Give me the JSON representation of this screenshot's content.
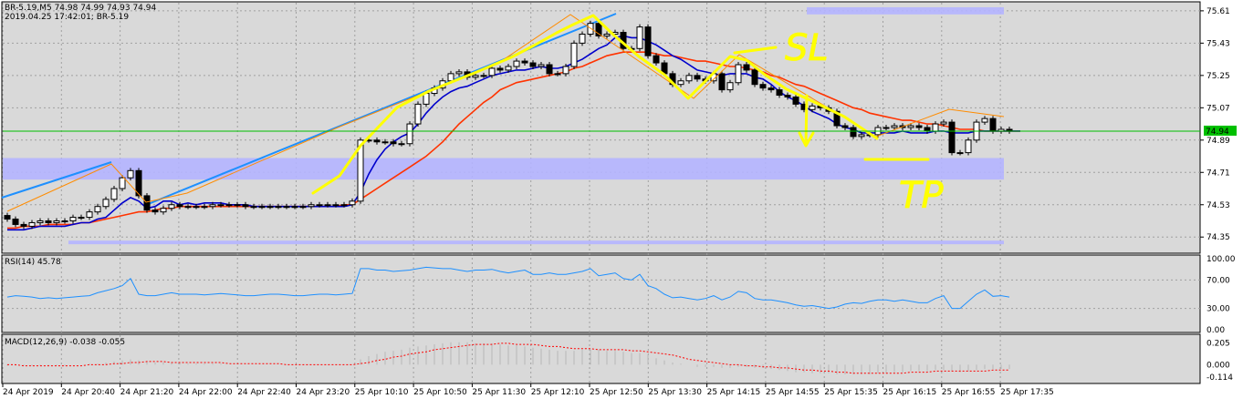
{
  "header": {
    "symbol_line": "BR-5.19,M5  74.98 74.99 74.93 74.94",
    "info_line": "2019.04.25 17:42:01; BR-5.19"
  },
  "price_panel": {
    "current_price": "74.94",
    "annotations": {
      "sl": "SL",
      "tp": "TP"
    },
    "y_ticks": [
      "75.61",
      "75.43",
      "75.25",
      "75.07",
      "74.89",
      "74.71",
      "74.53",
      "74.35"
    ]
  },
  "rsi_panel": {
    "label": "RSI(14) 45.78",
    "y_ticks": [
      "100.00",
      "70.00",
      "30.00",
      "0.00"
    ]
  },
  "macd_panel": {
    "label": "MACD(12,26,9) -0.038 -0.055",
    "y_ticks": [
      "0.205",
      "0.000",
      "-0.114"
    ]
  },
  "x_axis": {
    "ticks": [
      "24 Apr 2019",
      "24 Apr 20:40",
      "24 Apr 21:20",
      "24 Apr 22:00",
      "24 Apr 22:40",
      "24 Apr 23:20",
      "25 Apr 10:10",
      "25 Apr 10:50",
      "25 Apr 11:30",
      "25 Apr 12:10",
      "25 Apr 12:50",
      "25 Apr 13:30",
      "25 Apr 14:15",
      "25 Apr 14:55",
      "25 Apr 15:35",
      "25 Apr 16:15",
      "25 Apr 16:55",
      "25 Apr 17:35"
    ]
  },
  "colors": {
    "background": "#d9d9d9",
    "grid": "#a0a0a0",
    "ma_fast": "#0000cc",
    "ma_slow": "#ff3300",
    "trendline": "#1e90ff",
    "marker": "#ffff00",
    "zone": "#b4b4ff",
    "current_price_line": "#00c000",
    "rsi_line": "#1e90ff",
    "macd_signal": "#ff0000"
  },
  "chart_data": [
    {
      "type": "candlestick",
      "price_range": [
        74.27,
        75.65
      ],
      "close": [
        74.45,
        74.42,
        74.41,
        74.43,
        74.44,
        74.43,
        74.44,
        74.44,
        74.46,
        74.46,
        74.49,
        74.52,
        74.56,
        74.62,
        74.68,
        74.72,
        74.58,
        74.5,
        74.49,
        74.51,
        74.53,
        74.52,
        74.52,
        74.52,
        74.52,
        74.53,
        74.53,
        74.53,
        74.53,
        74.52,
        74.52,
        74.52,
        74.52,
        74.52,
        74.52,
        74.52,
        74.52,
        74.53,
        74.53,
        74.53,
        74.53,
        74.53,
        74.55,
        74.89,
        74.89,
        74.88,
        74.88,
        74.87,
        74.87,
        74.98,
        75.09,
        75.15,
        75.18,
        75.22,
        75.26,
        75.27,
        75.24,
        75.25,
        75.25,
        75.29,
        75.28,
        75.3,
        75.33,
        75.32,
        75.3,
        75.31,
        75.26,
        75.26,
        75.3,
        75.43,
        75.48,
        75.54,
        75.47,
        75.48,
        75.49,
        75.4,
        75.4,
        75.52,
        75.36,
        75.32,
        75.26,
        75.2,
        75.22,
        75.25,
        75.23,
        75.22,
        75.26,
        75.17,
        75.21,
        75.31,
        75.28,
        75.2,
        75.18,
        75.17,
        75.14,
        75.13,
        75.09,
        75.06,
        75.08,
        75.07,
        75.05,
        74.97,
        74.96,
        74.91,
        74.92,
        74.92,
        74.96,
        74.96,
        74.97,
        74.96,
        74.97,
        74.96,
        74.94,
        74.98,
        74.99,
        74.82,
        74.82,
        74.89,
        74.99,
        75.01,
        74.94,
        74.95,
        74.94
      ],
      "open": [
        74.47,
        74.45,
        74.42,
        74.41,
        74.43,
        74.44,
        74.43,
        74.44,
        74.44,
        74.46,
        74.46,
        74.49,
        74.52,
        74.56,
        74.62,
        74.68,
        74.72,
        74.58,
        74.5,
        74.49,
        74.51,
        74.53,
        74.52,
        74.52,
        74.52,
        74.52,
        74.53,
        74.53,
        74.53,
        74.53,
        74.52,
        74.52,
        74.52,
        74.52,
        74.52,
        74.52,
        74.52,
        74.52,
        74.53,
        74.53,
        74.53,
        74.53,
        74.53,
        74.55,
        74.89,
        74.89,
        74.88,
        74.88,
        74.87,
        74.87,
        74.98,
        75.09,
        75.15,
        75.18,
        75.22,
        75.26,
        75.27,
        75.24,
        75.25,
        75.25,
        75.29,
        75.28,
        75.3,
        75.33,
        75.32,
        75.3,
        75.31,
        75.26,
        75.26,
        75.3,
        75.43,
        75.48,
        75.54,
        75.47,
        75.48,
        75.49,
        75.4,
        75.4,
        75.52,
        75.36,
        75.32,
        75.26,
        75.2,
        75.22,
        75.25,
        75.23,
        75.22,
        75.26,
        75.17,
        75.21,
        75.31,
        75.28,
        75.2,
        75.18,
        75.17,
        75.14,
        75.13,
        75.09,
        75.06,
        75.08,
        75.07,
        75.05,
        74.97,
        74.96,
        74.91,
        74.92,
        74.92,
        74.96,
        74.96,
        74.97,
        74.96,
        74.97,
        74.96,
        74.94,
        74.98,
        74.99,
        74.82,
        74.82,
        74.89,
        74.99,
        75.01,
        74.94,
        74.95
      ],
      "ma_fast": [
        74.39,
        74.39,
        74.39,
        74.4,
        74.41,
        74.41,
        74.41,
        74.41,
        74.42,
        74.43,
        74.43,
        74.45,
        74.46,
        74.5,
        74.54,
        74.57,
        74.55,
        74.51,
        74.52,
        74.55,
        74.55,
        74.53,
        74.54,
        74.53,
        74.54,
        74.54,
        74.54,
        74.53,
        74.53,
        74.53,
        74.52,
        74.52,
        74.52,
        74.52,
        74.52,
        74.52,
        74.52,
        74.52,
        74.52,
        74.52,
        74.52,
        74.52,
        74.53,
        74.6,
        74.7,
        74.78,
        74.84,
        74.88,
        74.91,
        74.93,
        74.98,
        75.04,
        75.09,
        75.13,
        75.16,
        75.18,
        75.19,
        75.21,
        75.23,
        75.25,
        75.26,
        75.27,
        75.28,
        75.28,
        75.29,
        75.3,
        75.29,
        75.29,
        75.3,
        75.32,
        75.34,
        75.37,
        75.4,
        75.42,
        75.46,
        75.47,
        75.46,
        75.46,
        75.44,
        75.42,
        75.39,
        75.36,
        75.34,
        75.31,
        75.28,
        75.27,
        75.26,
        75.25,
        75.26,
        75.26,
        75.26,
        75.24,
        75.23,
        75.2,
        75.16,
        75.13,
        75.11,
        75.08,
        75.05,
        75.03,
        75.01,
        74.98,
        74.96,
        74.95,
        74.93,
        74.93,
        74.93,
        74.93,
        74.93,
        74.94,
        74.93,
        74.93,
        74.93,
        74.94,
        74.94,
        74.93,
        74.93,
        74.93,
        74.94,
        74.94,
        74.94,
        74.94,
        74.94
      ],
      "ma_slow": [
        74.4,
        74.4,
        74.41,
        74.41,
        74.41,
        74.42,
        74.42,
        74.42,
        74.42,
        74.43,
        74.43,
        74.44,
        74.45,
        74.46,
        74.47,
        74.48,
        74.49,
        74.49,
        74.5,
        74.51,
        74.51,
        74.52,
        74.52,
        74.52,
        74.52,
        74.52,
        74.52,
        74.52,
        74.52,
        74.52,
        74.52,
        74.52,
        74.52,
        74.52,
        74.52,
        74.52,
        74.52,
        74.52,
        74.52,
        74.52,
        74.52,
        74.53,
        74.53,
        74.56,
        74.59,
        74.62,
        74.65,
        74.68,
        74.71,
        74.74,
        74.77,
        74.8,
        74.84,
        74.88,
        74.93,
        74.98,
        75.02,
        75.06,
        75.1,
        75.13,
        75.17,
        75.19,
        75.21,
        75.22,
        75.23,
        75.24,
        75.25,
        75.26,
        75.27,
        75.29,
        75.3,
        75.32,
        75.34,
        75.36,
        75.37,
        75.38,
        75.38,
        75.38,
        75.38,
        75.37,
        75.36,
        75.36,
        75.35,
        75.34,
        75.33,
        75.33,
        75.32,
        75.31,
        75.3,
        75.3,
        75.29,
        75.28,
        75.27,
        75.25,
        75.24,
        75.22,
        75.2,
        75.19,
        75.17,
        75.15,
        75.13,
        75.11,
        75.09,
        75.07,
        75.06,
        75.04,
        75.03,
        75.02,
        75.01,
        75.0,
        75.0,
        74.99,
        74.98,
        74.98,
        74.97,
        74.96,
        74.95,
        74.95,
        74.95,
        74.94,
        74.94,
        74.94,
        74.94
      ],
      "zones": [
        [
          74.67,
          74.79
        ],
        [
          75.59,
          75.63
        ],
        [
          74.31,
          74.33
        ]
      ]
    },
    {
      "type": "line",
      "name": "RSI(14)",
      "ylim": [
        0,
        100
      ],
      "values": [
        46,
        48,
        47,
        46,
        44,
        45,
        44,
        45,
        46,
        47,
        48,
        52,
        55,
        58,
        62,
        72,
        50,
        48,
        48,
        50,
        52,
        50,
        50,
        50,
        49,
        50,
        51,
        50,
        49,
        48,
        48,
        49,
        50,
        50,
        49,
        48,
        48,
        49,
        50,
        50,
        49,
        50,
        51,
        86,
        86,
        84,
        84,
        82,
        83,
        84,
        86,
        88,
        87,
        86,
        86,
        84,
        82,
        84,
        84,
        85,
        82,
        80,
        82,
        84,
        78,
        78,
        80,
        78,
        78,
        80,
        82,
        86,
        76,
        78,
        80,
        72,
        70,
        78,
        62,
        58,
        50,
        45,
        46,
        44,
        42,
        44,
        48,
        42,
        46,
        54,
        52,
        44,
        42,
        42,
        40,
        38,
        35,
        33,
        34,
        32,
        30,
        32,
        36,
        38,
        37,
        40,
        42,
        42,
        40,
        42,
        40,
        38,
        38,
        44,
        48,
        30,
        30,
        40,
        50,
        56,
        47,
        48,
        46
      ]
    },
    {
      "type": "bar",
      "name": "MACD(12,26,9)",
      "ylim": [
        -0.15,
        0.25
      ],
      "values": [
        -0.01,
        -0.01,
        -0.01,
        -0.01,
        -0.01,
        -0.01,
        -0.01,
        -0.01,
        -0.0,
        0.0,
        0.01,
        0.01,
        0.02,
        0.03,
        0.04,
        0.05,
        0.04,
        0.03,
        0.02,
        0.02,
        0.02,
        0.02,
        0.01,
        0.01,
        0.01,
        0.01,
        0.01,
        0.0,
        0.0,
        -0.0,
        -0.0,
        -0.0,
        -0.0,
        -0.0,
        -0.0,
        -0.0,
        -0.0,
        -0.0,
        -0.0,
        -0.0,
        -0.0,
        0.0,
        0.0,
        0.05,
        0.08,
        0.1,
        0.12,
        0.13,
        0.14,
        0.16,
        0.17,
        0.18,
        0.19,
        0.2,
        0.21,
        0.21,
        0.21,
        0.2,
        0.2,
        0.2,
        0.19,
        0.18,
        0.18,
        0.17,
        0.16,
        0.15,
        0.14,
        0.13,
        0.13,
        0.13,
        0.14,
        0.14,
        0.14,
        0.13,
        0.13,
        0.12,
        0.11,
        0.11,
        0.09,
        0.06,
        0.04,
        0.02,
        0.01,
        -0.0,
        -0.02,
        -0.02,
        -0.02,
        -0.03,
        -0.03,
        -0.02,
        -0.02,
        -0.03,
        -0.03,
        -0.04,
        -0.05,
        -0.06,
        -0.07,
        -0.07,
        -0.08,
        -0.08,
        -0.08,
        -0.09,
        -0.09,
        -0.09,
        -0.09,
        -0.09,
        -0.08,
        -0.08,
        -0.07,
        -0.07,
        -0.06,
        -0.06,
        -0.06,
        -0.05,
        -0.05,
        -0.06,
        -0.07,
        -0.06,
        -0.05,
        -0.04,
        -0.04,
        -0.04,
        -0.04
      ],
      "signal": [
        -0.0,
        -0.0,
        -0.01,
        -0.01,
        -0.01,
        -0.01,
        -0.01,
        -0.01,
        -0.01,
        -0.01,
        -0.0,
        -0.0,
        0.0,
        0.01,
        0.01,
        0.02,
        0.02,
        0.03,
        0.03,
        0.03,
        0.02,
        0.02,
        0.02,
        0.02,
        0.02,
        0.02,
        0.02,
        0.01,
        0.01,
        0.01,
        0.01,
        0.01,
        0.01,
        0.01,
        0.0,
        0.0,
        0.0,
        0.0,
        0.0,
        0.0,
        0.0,
        0.0,
        0.0,
        0.01,
        0.02,
        0.04,
        0.05,
        0.07,
        0.08,
        0.1,
        0.11,
        0.12,
        0.14,
        0.15,
        0.16,
        0.17,
        0.18,
        0.19,
        0.19,
        0.19,
        0.2,
        0.2,
        0.19,
        0.19,
        0.19,
        0.18,
        0.17,
        0.17,
        0.16,
        0.15,
        0.15,
        0.15,
        0.14,
        0.14,
        0.14,
        0.14,
        0.13,
        0.13,
        0.12,
        0.11,
        0.1,
        0.09,
        0.07,
        0.05,
        0.04,
        0.03,
        0.02,
        0.01,
        0.0,
        -0.0,
        -0.01,
        -0.01,
        -0.02,
        -0.02,
        -0.03,
        -0.03,
        -0.04,
        -0.05,
        -0.05,
        -0.06,
        -0.06,
        -0.07,
        -0.07,
        -0.08,
        -0.08,
        -0.08,
        -0.08,
        -0.08,
        -0.08,
        -0.08,
        -0.07,
        -0.07,
        -0.07,
        -0.06,
        -0.06,
        -0.06,
        -0.06,
        -0.06,
        -0.06,
        -0.06,
        -0.05,
        -0.05,
        -0.05
      ]
    }
  ]
}
